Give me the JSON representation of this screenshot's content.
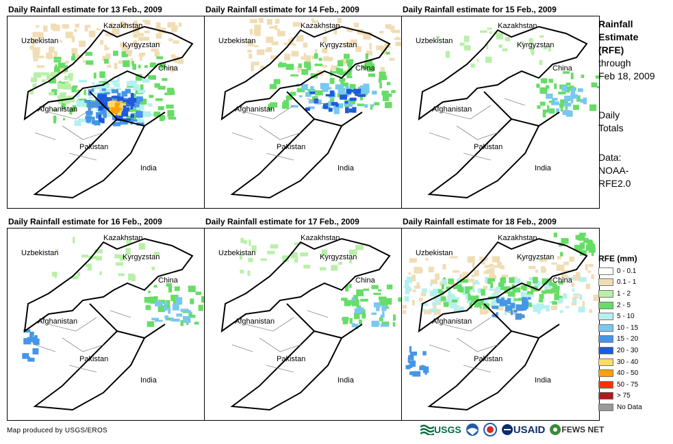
{
  "panels": [
    {
      "title": "Daily Rainfall estimate for 13 Feb., 2009",
      "rain_level": "heavy"
    },
    {
      "title": "Daily Rainfall estimate for 14 Feb., 2009",
      "rain_level": "moderate"
    },
    {
      "title": "Daily Rainfall estimate for 15 Feb., 2009",
      "rain_level": "light"
    },
    {
      "title": "Daily Rainfall estimate for 16 Feb., 2009",
      "rain_level": "light"
    },
    {
      "title": "Daily Rainfall estimate for 17 Feb., 2009",
      "rain_level": "light"
    },
    {
      "title": "Daily Rainfall estimate for 18 Feb., 2009",
      "rain_level": "moderate"
    }
  ],
  "country_labels": {
    "kazakhstan": "Kazakhstan",
    "uzbekistan": "Uzbekistan",
    "kyrgyzstan": "Kyrgyzstan",
    "china": "China",
    "afghanistan": "Afghanistan",
    "pakistan": "Pakistan",
    "india": "India"
  },
  "side": {
    "title_line1": "Rainfall",
    "title_line2": "Estimate",
    "title_line3": "(RFE)",
    "through": "through",
    "date": "Feb 18, 2009",
    "daily1": "Daily",
    "daily2": "Totals",
    "data_label": "Data:",
    "data_src1": "NOAA-",
    "data_src2": "RFE2.0"
  },
  "legend": {
    "title": "RFE (mm)",
    "items": [
      {
        "label": "0 - 0.1",
        "color": "#ffffff"
      },
      {
        "label": "0.1 - 1",
        "color": "#f0ddb4"
      },
      {
        "label": "1 - 2",
        "color": "#b8f0a8"
      },
      {
        "label": "2 - 5",
        "color": "#66dd66"
      },
      {
        "label": "5 - 10",
        "color": "#b4f0f0"
      },
      {
        "label": "10 - 15",
        "color": "#78c8f0"
      },
      {
        "label": "15 - 20",
        "color": "#4696e6"
      },
      {
        "label": "20 - 30",
        "color": "#1e5adc"
      },
      {
        "label": "30 - 40",
        "color": "#ffdc64"
      },
      {
        "label": "40 - 50",
        "color": "#ffa000"
      },
      {
        "label": "50 - 75",
        "color": "#ff3200"
      },
      {
        "label": "> 75",
        "color": "#aa1e1e"
      },
      {
        "label": "No Data",
        "color": "#999999"
      }
    ]
  },
  "footer": "Map produced by USGS/EROS",
  "logos": [
    "USGS",
    "NOAA",
    "NWS",
    "USAID",
    "FEWS NET"
  ]
}
